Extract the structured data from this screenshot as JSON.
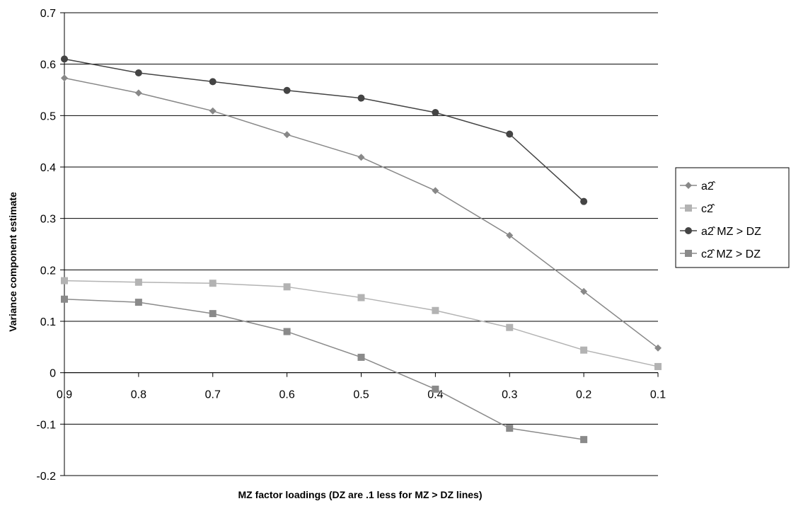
{
  "chart_data": {
    "type": "line",
    "x": [
      0.9,
      0.8,
      0.7,
      0.6,
      0.5,
      0.4,
      0.3,
      0.2,
      0.1
    ],
    "x_tick_labels": [
      "0.9",
      "0.8",
      "0.7",
      "0.6",
      "0.5",
      "0.4",
      "0.3",
      "0.2",
      "0.1"
    ],
    "ylim": [
      -0.2,
      0.7
    ],
    "y_ticks": [
      -0.2,
      -0.1,
      0,
      0.1,
      0.2,
      0.3,
      0.4,
      0.5,
      0.6,
      0.7
    ],
    "y_tick_labels": [
      "-0.2",
      "-0.1",
      "0",
      "0.1",
      "0.2",
      "0.3",
      "0.4",
      "0.5",
      "0.6",
      "0.7"
    ],
    "xlabel": "MZ factor loadings (DZ are .1 less for MZ > DZ lines)",
    "ylabel": "Variance component estimate",
    "grid": "horizontal",
    "legend_position": "right",
    "series": [
      {
        "name": "a2̂",
        "marker": "diamond",
        "color": "#888888",
        "values": [
          0.573,
          0.544,
          0.509,
          0.463,
          0.419,
          0.354,
          0.267,
          0.158,
          0.048
        ]
      },
      {
        "name": "c2̂",
        "marker": "square",
        "color": "#b3b3b3",
        "values": [
          0.179,
          0.176,
          0.174,
          0.167,
          0.146,
          0.121,
          0.088,
          0.044,
          0.012
        ]
      },
      {
        "name": "a2̂ MZ > DZ",
        "marker": "circle",
        "color": "#444444",
        "values": [
          0.61,
          0.583,
          0.566,
          0.549,
          0.534,
          0.506,
          0.464,
          0.333,
          null
        ]
      },
      {
        "name": "c2̂ MZ > DZ",
        "marker": "square",
        "color": "#8a8a8a",
        "values": [
          0.143,
          0.137,
          0.115,
          0.08,
          0.03,
          -0.032,
          -0.108,
          -0.13,
          null
        ]
      }
    ]
  }
}
